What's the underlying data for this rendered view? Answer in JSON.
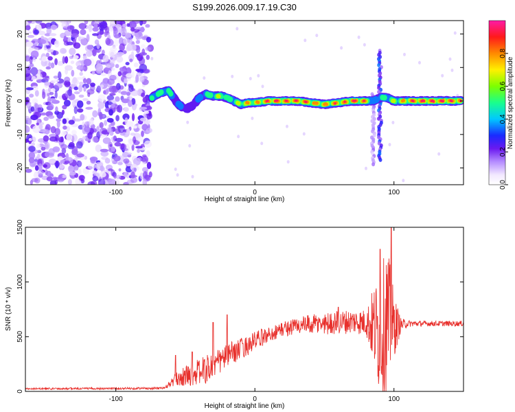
{
  "chart_data": [
    {
      "type": "heatmap",
      "title": "S199.2026.009.17.19.C30",
      "xlabel": "Height of straight line (km)",
      "ylabel": "Frequency (Hz)",
      "xlim": [
        -165,
        150
      ],
      "ylim": [
        -25,
        24
      ],
      "xticks": [
        -100,
        0,
        100
      ],
      "xtick_labels": [
        "-100",
        "0",
        "100"
      ],
      "yticks": [
        20,
        10,
        0,
        -10,
        -20
      ],
      "ytick_labels": [
        "20",
        "10",
        "0",
        "-10",
        "-20"
      ],
      "colorbar": {
        "label": "Normalized spectral amplitude",
        "range": [
          0,
          1
        ],
        "ticks": [
          0,
          0.2,
          0.4,
          0.6,
          0.8
        ],
        "tick_labels": [
          "0.0",
          "0.2",
          "0.4",
          "0.6",
          "0.8"
        ]
      },
      "noise_region": {
        "x_range": [
          -165,
          -75
        ],
        "typical_amplitude": 0.15
      },
      "ridge": [
        {
          "x": -74,
          "freq": 1,
          "amp": 0.45
        },
        {
          "x": -68,
          "freq": 2.5,
          "amp": 0.5
        },
        {
          "x": -62,
          "freq": 3,
          "amp": 0.45
        },
        {
          "x": -55,
          "freq": -1,
          "amp": 0.3
        },
        {
          "x": -50,
          "freq": -2.5,
          "amp": 0.25
        },
        {
          "x": -45,
          "freq": -1.5,
          "amp": 0.25
        },
        {
          "x": -40,
          "freq": 1,
          "amp": 0.3
        },
        {
          "x": -35,
          "freq": 2,
          "amp": 0.45
        },
        {
          "x": -30,
          "freq": 1.5,
          "amp": 0.55
        },
        {
          "x": -25,
          "freq": 1.5,
          "amp": 0.6
        },
        {
          "x": -20,
          "freq": 1,
          "amp": 0.5
        },
        {
          "x": -15,
          "freq": 0,
          "amp": 0.55
        },
        {
          "x": -10,
          "freq": -1,
          "amp": 0.6
        },
        {
          "x": -5,
          "freq": -0.5,
          "amp": 0.7
        },
        {
          "x": 0,
          "freq": -0.5,
          "amp": 0.7
        },
        {
          "x": 10,
          "freq": 0,
          "amp": 0.9
        },
        {
          "x": 20,
          "freq": 0,
          "amp": 0.9
        },
        {
          "x": 30,
          "freq": 0,
          "amp": 0.85
        },
        {
          "x": 40,
          "freq": -0.5,
          "amp": 0.8
        },
        {
          "x": 50,
          "freq": -1,
          "amp": 0.75
        },
        {
          "x": 60,
          "freq": -0.5,
          "amp": 0.8
        },
        {
          "x": 70,
          "freq": 0,
          "amp": 0.85
        },
        {
          "x": 80,
          "freq": 0,
          "amp": 0.8
        },
        {
          "x": 85,
          "freq": 0,
          "amp": 0.35
        },
        {
          "x": 90,
          "freq": 1,
          "amp": 0.45
        },
        {
          "x": 95,
          "freq": 1,
          "amp": 0.5
        },
        {
          "x": 100,
          "freq": 0,
          "amp": 0.55
        },
        {
          "x": 110,
          "freq": 0,
          "amp": 0.75
        },
        {
          "x": 120,
          "freq": 0,
          "amp": 0.9
        },
        {
          "x": 130,
          "freq": 0,
          "amp": 0.9
        },
        {
          "x": 140,
          "freq": 0,
          "amp": 0.85
        },
        {
          "x": 148,
          "freq": 0,
          "amp": 0.8
        }
      ],
      "vertical_features": [
        {
          "x": 90,
          "freq_range": [
            -18,
            15
          ],
          "amp": 0.25
        },
        {
          "x": 85,
          "freq_range": [
            -19,
            2
          ],
          "amp": 0.12
        }
      ]
    },
    {
      "type": "line",
      "xlabel": "Height of straight line (km)",
      "ylabel": "SNR (10 * v/v)",
      "xlim": [
        -165,
        150
      ],
      "ylim": [
        0,
        1500
      ],
      "xticks": [
        -100,
        0,
        100
      ],
      "xtick_labels": [
        "-100",
        "0",
        "100"
      ],
      "yticks": [
        0,
        500,
        1000,
        1500
      ],
      "ytick_labels": [
        "0",
        "500",
        "1000",
        "1500"
      ],
      "color": "#e8302c",
      "envelope": {
        "x": [
          -165,
          -75,
          -65,
          -60,
          -55,
          -50,
          -45,
          -40,
          -35,
          -30,
          -25,
          -20,
          -15,
          -10,
          -5,
          0,
          10,
          20,
          30,
          40,
          50,
          60,
          70,
          80,
          85,
          88,
          90,
          93,
          95,
          98,
          100,
          105,
          110,
          120,
          130,
          140,
          150
        ],
        "mean": [
          25,
          28,
          30,
          80,
          120,
          140,
          160,
          180,
          200,
          230,
          280,
          330,
          360,
          390,
          420,
          460,
          520,
          570,
          600,
          610,
          620,
          630,
          640,
          630,
          600,
          550,
          500,
          600,
          650,
          600,
          600,
          610,
          620,
          620,
          620,
          620,
          620
        ],
        "amp": [
          8,
          10,
          10,
          40,
          70,
          90,
          110,
          120,
          130,
          130,
          120,
          110,
          100,
          100,
          90,
          90,
          70,
          70,
          80,
          90,
          100,
          110,
          110,
          120,
          350,
          500,
          550,
          650,
          700,
          500,
          300,
          60,
          30,
          25,
          25,
          25,
          25
        ]
      },
      "peaks": [
        {
          "x": -57,
          "y": 330
        },
        {
          "x": -45,
          "y": 360
        },
        {
          "x": -30,
          "y": 630
        },
        {
          "x": -20,
          "y": 700
        },
        {
          "x": 60,
          "y": 770
        },
        {
          "x": 90,
          "y": 1300
        },
        {
          "x": 98,
          "y": 1500
        }
      ]
    }
  ]
}
